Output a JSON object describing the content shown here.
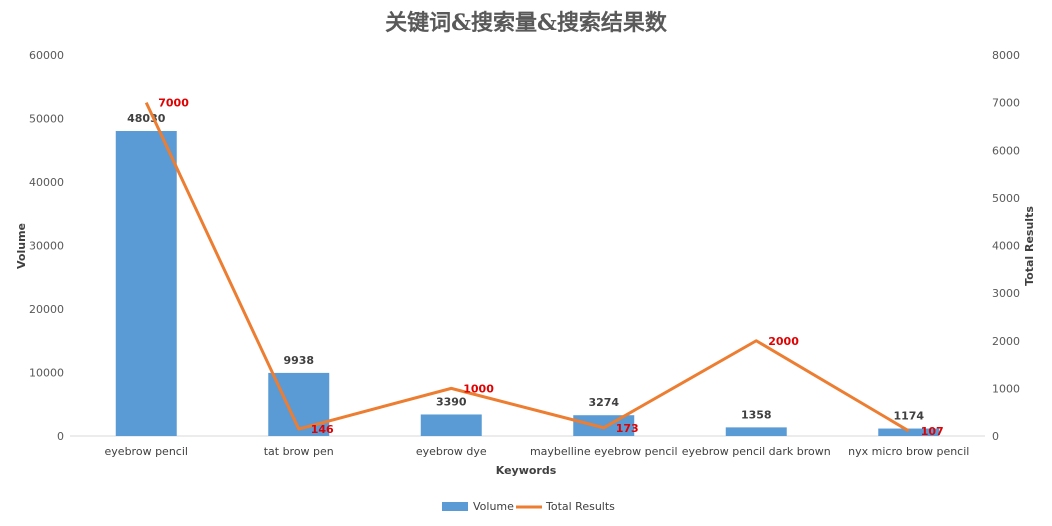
{
  "chart_data": {
    "type": "bar",
    "title": "关键词&搜索量&搜索结果数",
    "xlabel": "Keywords",
    "ylabel": "Volume",
    "y2label": "Total Results",
    "categories": [
      "eyebrow pencil",
      "tat brow pen",
      "eyebrow dye",
      "maybelline eyebrow pencil",
      "eyebrow pencil dark brown",
      "nyx micro brow pencil"
    ],
    "ylim": [
      0,
      60000
    ],
    "yticks": [
      "0",
      "10000",
      "20000",
      "30000",
      "40000",
      "50000",
      "60000"
    ],
    "y2lim": [
      0,
      8000
    ],
    "y2ticks": [
      "0",
      "1000",
      "2000",
      "3000",
      "4000",
      "5000",
      "6000",
      "7000",
      "8000"
    ],
    "grid": false,
    "legend_position": "bottom",
    "series": [
      {
        "name": "Volume",
        "type": "bar",
        "axis": "left",
        "color": "#5b9bd5",
        "values": [
          48030,
          9938,
          3390,
          3274,
          1358,
          1174
        ],
        "labels": [
          "48030",
          "9938",
          "3390",
          "3274",
          "1358",
          "1174"
        ]
      },
      {
        "name": "Total Results",
        "type": "line",
        "axis": "right",
        "color": "#ed7d31",
        "values": [
          7000,
          146,
          1000,
          173,
          2000,
          107
        ],
        "labels": [
          "7000",
          "146",
          "1000",
          "173",
          "2000",
          "107"
        ]
      }
    ]
  }
}
